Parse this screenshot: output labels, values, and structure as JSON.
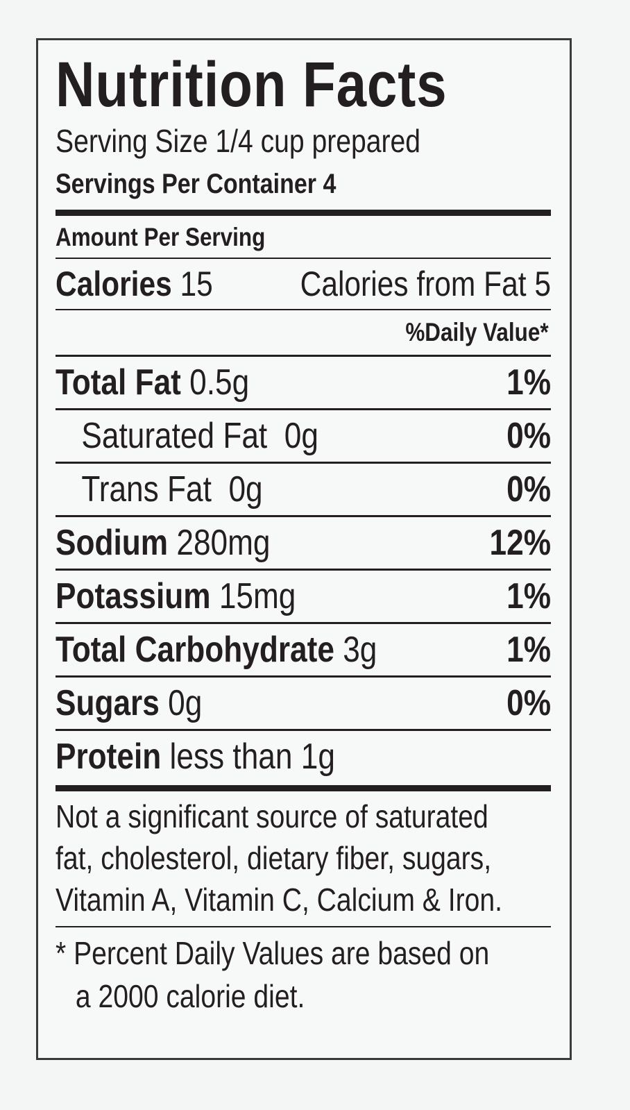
{
  "title": "Nutrition Facts",
  "serving_size": "Serving Size 1/4 cup prepared",
  "servings_per_container": "Servings Per Container 4",
  "amount_per_serving": "Amount Per Serving",
  "calories": {
    "label": "Calories",
    "value": "15",
    "from_fat": "Calories from Fat 5"
  },
  "daily_value_header": "%Daily Value*",
  "rows": [
    {
      "name": "Total Fat",
      "amount": "0.5g",
      "dv": "1%"
    },
    {
      "name": "Saturated Fat",
      "amount": "0g",
      "dv": "0%"
    },
    {
      "name": "Trans Fat",
      "amount": "0g",
      "dv": "0%"
    },
    {
      "name": "Sodium",
      "amount": "280mg",
      "dv": "12%"
    },
    {
      "name": "Potassium",
      "amount": "15mg",
      "dv": "1%"
    },
    {
      "name": "Total Carbohydrate",
      "amount": "3g",
      "dv": "1%"
    },
    {
      "name": "Sugars",
      "amount": "0g",
      "dv": "0%"
    },
    {
      "name": "Protein",
      "amount": "less than 1g"
    }
  ],
  "footnote": {
    "lines": [
      "Not a significant source of saturated",
      "fat, cholesterol, dietary fiber, sugars,",
      "Vitamin A, Vitamin C, Calcium & Iron."
    ]
  },
  "dv_note": {
    "lines": [
      "* Percent Daily Values are based on",
      "a 2000 calorie diet."
    ]
  }
}
